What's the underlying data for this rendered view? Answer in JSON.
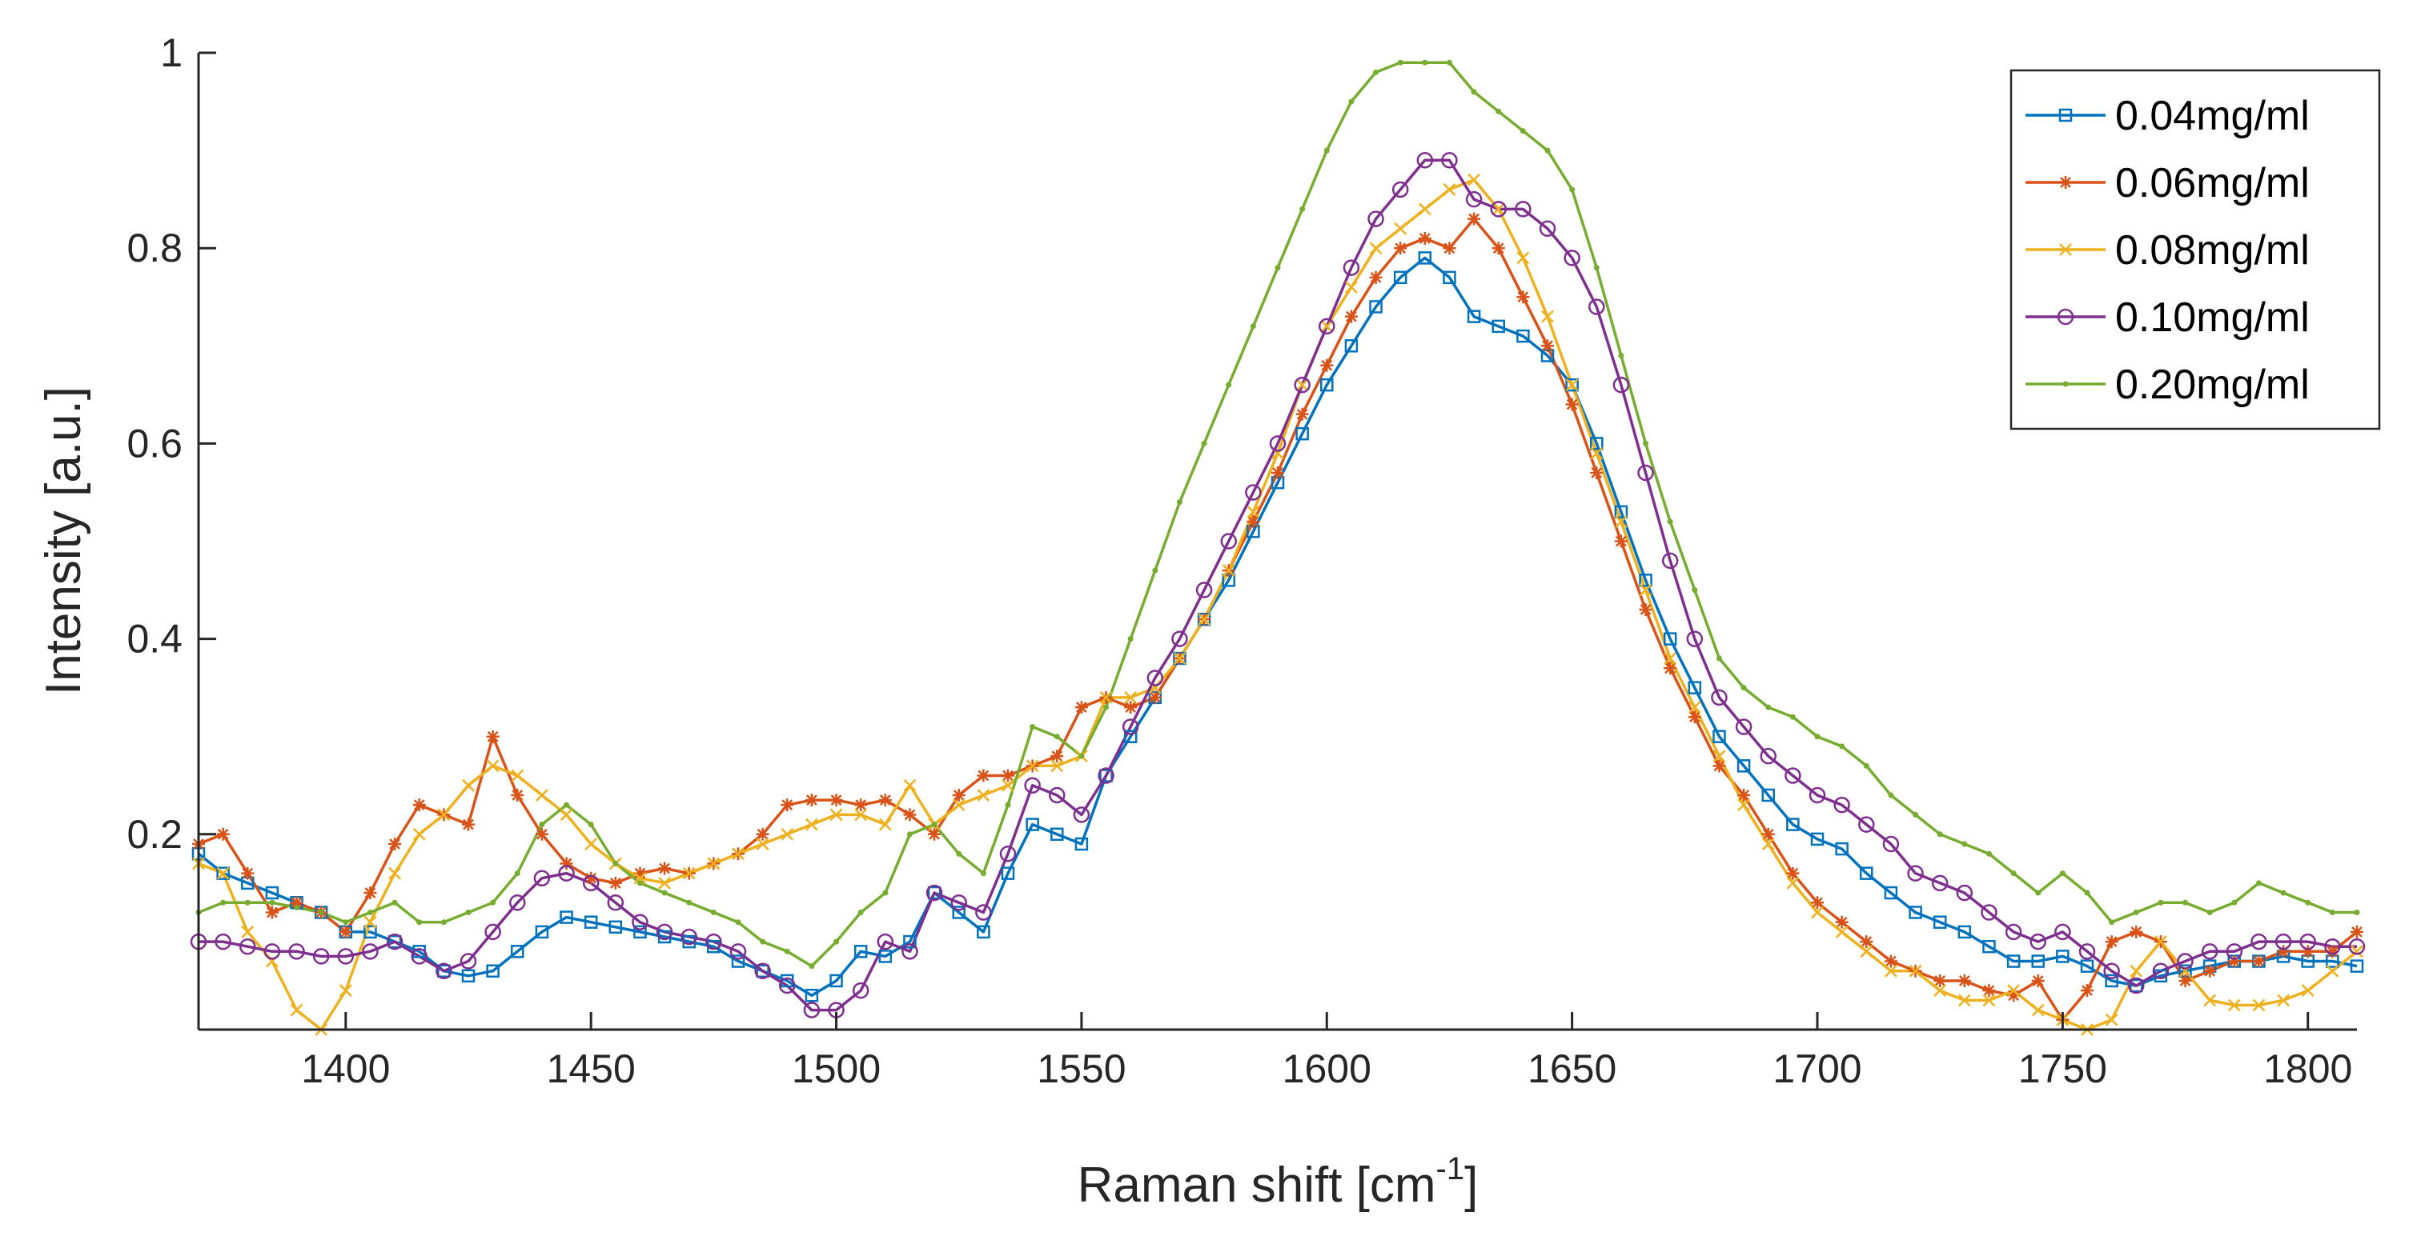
{
  "chart_data": {
    "type": "line",
    "title": "",
    "xlabel": "Raman shift [cm",
    "xlabel_sup": "-1",
    "xlabel_end": "]",
    "ylabel": "Intensity [a.u.]",
    "xlim": [
      1370,
      1810
    ],
    "ylim": [
      0,
      1
    ],
    "xticks": [
      "1400",
      "1450",
      "1500",
      "1550",
      "1600",
      "1650",
      "1700",
      "1750",
      "1800"
    ],
    "yticks": [
      "0.2",
      "0.4",
      "0.6",
      "0.8",
      "1"
    ],
    "legend_position": "top-right",
    "x": [
      1370,
      1375,
      1380,
      1385,
      1390,
      1395,
      1400,
      1405,
      1410,
      1415,
      1420,
      1425,
      1430,
      1435,
      1440,
      1445,
      1450,
      1455,
      1460,
      1465,
      1470,
      1475,
      1480,
      1485,
      1490,
      1495,
      1500,
      1505,
      1510,
      1515,
      1520,
      1525,
      1530,
      1535,
      1540,
      1545,
      1550,
      1555,
      1560,
      1565,
      1570,
      1575,
      1580,
      1585,
      1590,
      1595,
      1600,
      1605,
      1610,
      1615,
      1620,
      1625,
      1630,
      1635,
      1640,
      1645,
      1650,
      1655,
      1660,
      1665,
      1670,
      1675,
      1680,
      1685,
      1690,
      1695,
      1700,
      1705,
      1710,
      1715,
      1720,
      1725,
      1730,
      1735,
      1740,
      1745,
      1750,
      1755,
      1760,
      1765,
      1770,
      1775,
      1780,
      1785,
      1790,
      1795,
      1800,
      1805,
      1810
    ],
    "series": [
      {
        "name": "0.04mg/ml",
        "color": "#0072BD",
        "marker": "square",
        "values": [
          0.18,
          0.16,
          0.15,
          0.14,
          0.13,
          0.12,
          0.1,
          0.1,
          0.09,
          0.08,
          0.06,
          0.055,
          0.06,
          0.08,
          0.1,
          0.115,
          0.11,
          0.105,
          0.1,
          0.095,
          0.09,
          0.085,
          0.07,
          0.06,
          0.05,
          0.035,
          0.05,
          0.08,
          0.075,
          0.09,
          0.14,
          0.12,
          0.1,
          0.16,
          0.21,
          0.2,
          0.19,
          0.26,
          0.3,
          0.34,
          0.38,
          0.42,
          0.46,
          0.51,
          0.56,
          0.61,
          0.66,
          0.7,
          0.74,
          0.77,
          0.79,
          0.77,
          0.73,
          0.72,
          0.71,
          0.69,
          0.66,
          0.6,
          0.53,
          0.46,
          0.4,
          0.35,
          0.3,
          0.27,
          0.24,
          0.21,
          0.195,
          0.185,
          0.16,
          0.14,
          0.12,
          0.11,
          0.1,
          0.085,
          0.07,
          0.07,
          0.075,
          0.065,
          0.05,
          0.045,
          0.055,
          0.06,
          0.065,
          0.07,
          0.07,
          0.075,
          0.07,
          0.07,
          0.065
        ]
      },
      {
        "name": "0.06mg/ml",
        "color": "#D95319",
        "marker": "asterisk",
        "values": [
          0.19,
          0.2,
          0.16,
          0.12,
          0.13,
          0.12,
          0.1,
          0.14,
          0.19,
          0.23,
          0.22,
          0.21,
          0.3,
          0.24,
          0.2,
          0.17,
          0.155,
          0.15,
          0.16,
          0.165,
          0.16,
          0.17,
          0.18,
          0.2,
          0.23,
          0.235,
          0.235,
          0.23,
          0.235,
          0.22,
          0.2,
          0.24,
          0.26,
          0.26,
          0.27,
          0.28,
          0.33,
          0.34,
          0.33,
          0.34,
          0.38,
          0.42,
          0.47,
          0.52,
          0.57,
          0.63,
          0.68,
          0.73,
          0.77,
          0.8,
          0.81,
          0.8,
          0.83,
          0.8,
          0.75,
          0.7,
          0.64,
          0.57,
          0.5,
          0.43,
          0.37,
          0.32,
          0.27,
          0.24,
          0.2,
          0.16,
          0.13,
          0.11,
          0.09,
          0.07,
          0.06,
          0.05,
          0.05,
          0.04,
          0.035,
          0.05,
          0.01,
          0.04,
          0.09,
          0.1,
          0.09,
          0.05,
          0.06,
          0.07,
          0.07,
          0.08,
          0.08,
          0.08,
          0.1
        ]
      },
      {
        "name": "0.08mg/ml",
        "color": "#EDB120",
        "marker": "cross",
        "values": [
          0.17,
          0.16,
          0.1,
          0.07,
          0.02,
          0.0,
          0.04,
          0.11,
          0.16,
          0.2,
          0.22,
          0.25,
          0.27,
          0.26,
          0.24,
          0.22,
          0.19,
          0.17,
          0.155,
          0.15,
          0.16,
          0.17,
          0.18,
          0.19,
          0.2,
          0.21,
          0.22,
          0.22,
          0.21,
          0.25,
          0.21,
          0.23,
          0.24,
          0.25,
          0.27,
          0.27,
          0.28,
          0.34,
          0.34,
          0.35,
          0.38,
          0.42,
          0.47,
          0.53,
          0.59,
          0.66,
          0.72,
          0.76,
          0.8,
          0.82,
          0.84,
          0.86,
          0.87,
          0.84,
          0.79,
          0.73,
          0.66,
          0.59,
          0.52,
          0.45,
          0.38,
          0.33,
          0.28,
          0.23,
          0.19,
          0.15,
          0.12,
          0.1,
          0.08,
          0.06,
          0.06,
          0.04,
          0.03,
          0.03,
          0.04,
          0.02,
          0.01,
          0.0,
          0.01,
          0.06,
          0.09,
          0.06,
          0.03,
          0.025,
          0.025,
          0.03,
          0.04,
          0.06,
          0.08
        ]
      },
      {
        "name": "0.10mg/ml",
        "color": "#7E2F8E",
        "marker": "circle",
        "values": [
          0.09,
          0.09,
          0.085,
          0.08,
          0.08,
          0.075,
          0.075,
          0.08,
          0.09,
          0.075,
          0.06,
          0.07,
          0.1,
          0.13,
          0.155,
          0.16,
          0.15,
          0.13,
          0.11,
          0.1,
          0.095,
          0.09,
          0.08,
          0.06,
          0.045,
          0.02,
          0.02,
          0.04,
          0.09,
          0.08,
          0.14,
          0.13,
          0.12,
          0.18,
          0.25,
          0.24,
          0.22,
          0.26,
          0.31,
          0.36,
          0.4,
          0.45,
          0.5,
          0.55,
          0.6,
          0.66,
          0.72,
          0.78,
          0.83,
          0.86,
          0.89,
          0.89,
          0.85,
          0.84,
          0.84,
          0.82,
          0.79,
          0.74,
          0.66,
          0.57,
          0.48,
          0.4,
          0.34,
          0.31,
          0.28,
          0.26,
          0.24,
          0.23,
          0.21,
          0.19,
          0.16,
          0.15,
          0.14,
          0.12,
          0.1,
          0.09,
          0.1,
          0.08,
          0.06,
          0.045,
          0.06,
          0.07,
          0.08,
          0.08,
          0.09,
          0.09,
          0.09,
          0.085,
          0.085
        ]
      },
      {
        "name": "0.20mg/ml",
        "color": "#77AC30",
        "marker": "point",
        "values": [
          0.12,
          0.13,
          0.13,
          0.13,
          0.125,
          0.12,
          0.11,
          0.12,
          0.13,
          0.11,
          0.11,
          0.12,
          0.13,
          0.16,
          0.21,
          0.23,
          0.21,
          0.17,
          0.15,
          0.14,
          0.13,
          0.12,
          0.11,
          0.09,
          0.08,
          0.065,
          0.09,
          0.12,
          0.14,
          0.2,
          0.21,
          0.18,
          0.16,
          0.23,
          0.31,
          0.3,
          0.28,
          0.33,
          0.4,
          0.47,
          0.54,
          0.6,
          0.66,
          0.72,
          0.78,
          0.84,
          0.9,
          0.95,
          0.98,
          0.99,
          0.99,
          0.99,
          0.96,
          0.94,
          0.92,
          0.9,
          0.86,
          0.78,
          0.69,
          0.6,
          0.52,
          0.45,
          0.38,
          0.35,
          0.33,
          0.32,
          0.3,
          0.29,
          0.27,
          0.24,
          0.22,
          0.2,
          0.19,
          0.18,
          0.16,
          0.14,
          0.16,
          0.14,
          0.11,
          0.12,
          0.13,
          0.13,
          0.12,
          0.13,
          0.15,
          0.14,
          0.13,
          0.12,
          0.12
        ]
      }
    ]
  }
}
